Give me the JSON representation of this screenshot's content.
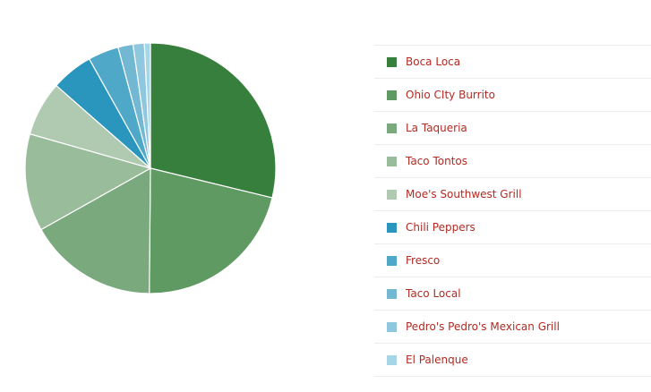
{
  "chart_data": {
    "type": "pie",
    "title": "",
    "slices": [
      {
        "label": "Boca Loca",
        "value": 29.8,
        "color": "#377f3c"
      },
      {
        "label": "Ohio CIty Burrito",
        "value": 22.1,
        "color": "#5e9a61"
      },
      {
        "label": "La Taqueria",
        "value": 17.3,
        "color": "#7ba97e"
      },
      {
        "label": "Taco Tontos",
        "value": 13.0,
        "color": "#99bc9b"
      },
      {
        "label": "Moe's Southwest Grill",
        "value": 7.3,
        "color": "#afcab0"
      },
      {
        "label": "Chili Peppers",
        "value": 5.6,
        "color": "#2a95bd"
      },
      {
        "label": "Fresco",
        "value": 4.1,
        "color": "#4fa8c8"
      },
      {
        "label": "Taco Local",
        "value": 2.0,
        "color": "#72b8d3"
      },
      {
        "label": "Pedro's Pedro's Mexican Grill",
        "value": 1.5,
        "color": "#8fc7de"
      },
      {
        "label": "El Palenque",
        "value": 0.8,
        "color": "#a6d5e7"
      }
    ],
    "legend_position": "right"
  }
}
